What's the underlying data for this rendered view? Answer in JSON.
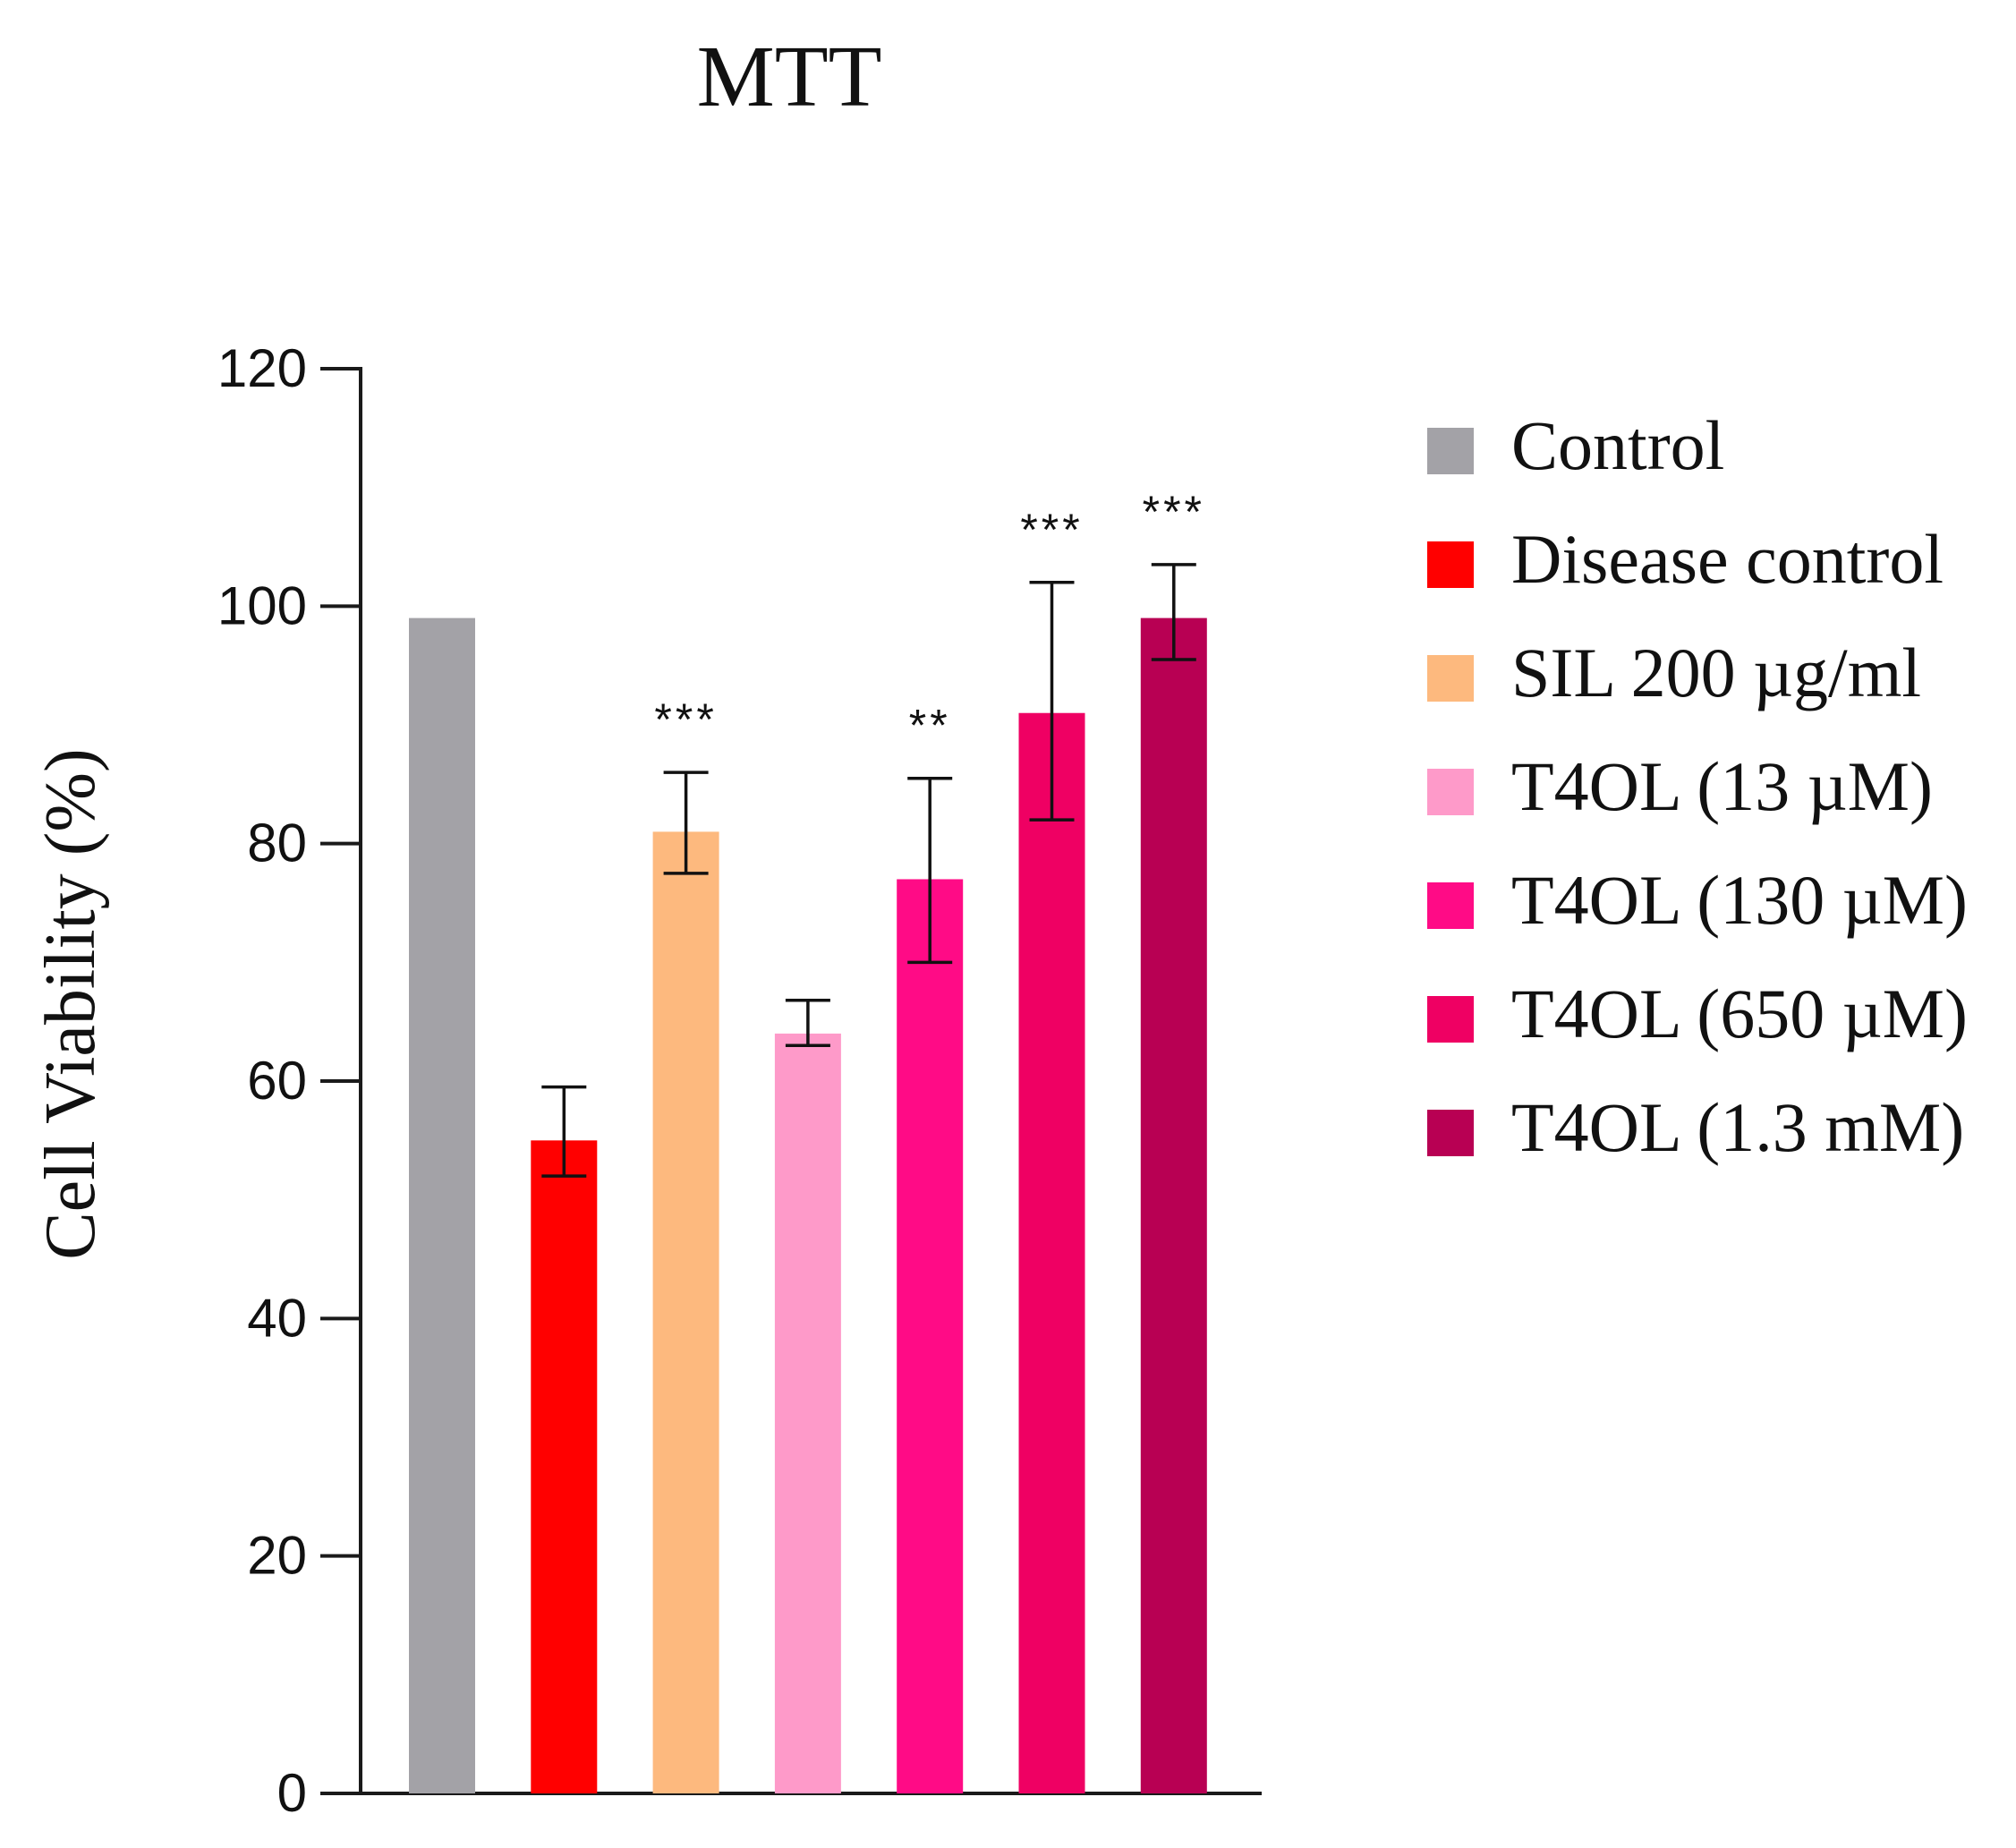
{
  "chart_data": {
    "type": "bar",
    "title": "MTT",
    "xlabel": "",
    "ylabel": "Cell Viability (%)",
    "ylim": [
      0,
      120
    ],
    "yticks": [
      0,
      20,
      40,
      60,
      80,
      100,
      120
    ],
    "ytick_labels": [
      "0",
      "20",
      "40",
      "60",
      "80",
      "100",
      "120"
    ],
    "grid": false,
    "legend_position": "right",
    "categories": [
      "Control",
      "Disease control",
      "SIL 200 µg/ml",
      "T4OL (13  µM)",
      "T4OL (130  µM)",
      "T4OL (650  µM)",
      "T4OL (1.3  mM)"
    ],
    "values": [
      99,
      55,
      81,
      64,
      77,
      91,
      99
    ],
    "errors_low": [
      null,
      52,
      77.5,
      63,
      70,
      82,
      95.5
    ],
    "errors_high": [
      null,
      59.5,
      86,
      66.8,
      85.5,
      102,
      103.5
    ],
    "significance": [
      "",
      "",
      "***",
      "",
      "**",
      "***",
      "***"
    ],
    "colors": [
      "#a3a2a7",
      "#ff0000",
      "#fdb97e",
      "#fe9ac9",
      "#ff0b86",
      "#ef0063",
      "#b80053"
    ]
  }
}
